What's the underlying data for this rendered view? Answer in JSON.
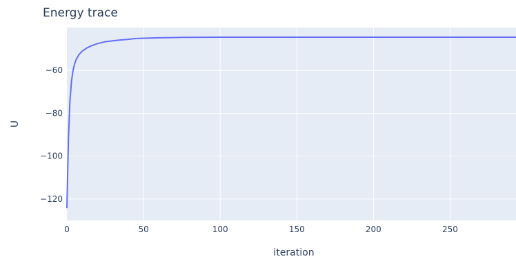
{
  "chart_data": {
    "type": "line",
    "title": "Energy trace",
    "xlabel": "iteration",
    "ylabel": "U",
    "xlim": [
      0,
      293
    ],
    "ylim": [
      -130,
      -40
    ],
    "xticks": [
      0,
      50,
      100,
      150,
      200,
      250
    ],
    "xtick_labels": [
      "0",
      "50",
      "100",
      "150",
      "200",
      "250"
    ],
    "yticks": [
      -120,
      -100,
      -80,
      -60
    ],
    "ytick_labels": [
      "−120",
      "−100",
      "−80",
      "−60"
    ],
    "grid": true,
    "series": [
      {
        "color": "#636efa",
        "x": [
          0,
          1,
          2,
          3,
          4,
          5,
          6,
          8,
          10,
          13,
          16,
          20,
          25,
          30,
          35,
          40,
          45,
          50,
          60,
          75,
          100,
          150,
          200,
          250,
          293
        ],
        "y": [
          -124,
          -92,
          -74,
          -65,
          -60,
          -57,
          -55,
          -52.5,
          -51,
          -49.5,
          -48.5,
          -47.5,
          -46.6,
          -46.2,
          -45.8,
          -45.5,
          -45.1,
          -45.0,
          -44.8,
          -44.6,
          -44.5,
          -44.5,
          -44.5,
          -44.5,
          -44.5
        ]
      }
    ]
  }
}
